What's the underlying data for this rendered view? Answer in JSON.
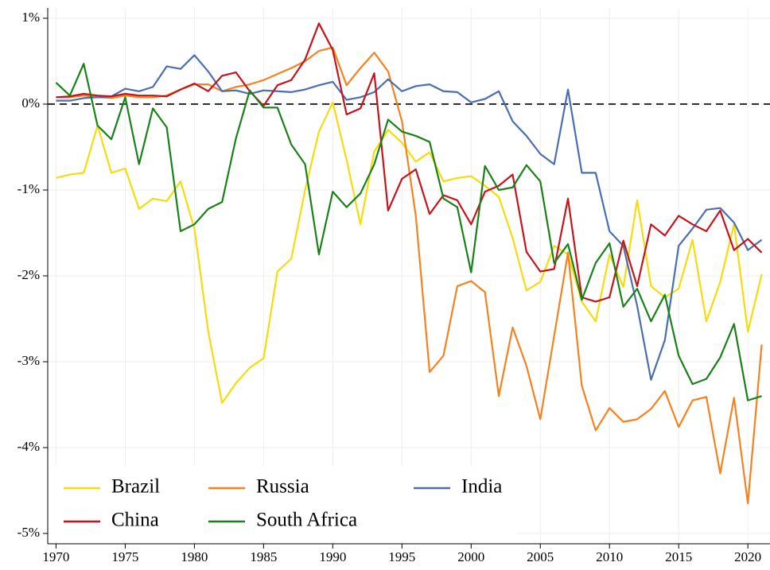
{
  "chart_data": {
    "type": "line",
    "x": [
      1970,
      1971,
      1972,
      1973,
      1974,
      1975,
      1976,
      1977,
      1978,
      1979,
      1980,
      1981,
      1982,
      1983,
      1984,
      1985,
      1986,
      1987,
      1988,
      1989,
      1990,
      1991,
      1992,
      1993,
      1994,
      1995,
      1996,
      1997,
      1998,
      1999,
      2000,
      2001,
      2002,
      2003,
      2004,
      2005,
      2006,
      2007,
      2008,
      2009,
      2010,
      2011,
      2012,
      2013,
      2014,
      2015,
      2016,
      2017,
      2018,
      2019,
      2020,
      2021
    ],
    "series": [
      {
        "name": "Brazil",
        "color": "#f5dc0c",
        "values": [
          -0.86,
          -0.82,
          -0.8,
          -0.25,
          -0.8,
          -0.75,
          -1.22,
          -1.1,
          -1.13,
          -0.9,
          -1.45,
          -2.65,
          -3.48,
          -3.25,
          -3.07,
          -2.96,
          -1.95,
          -1.8,
          -1.0,
          -0.32,
          0.02,
          -0.65,
          -1.4,
          -0.55,
          -0.3,
          -0.45,
          -0.67,
          -0.56,
          -0.9,
          -0.86,
          -0.84,
          -0.95,
          -1.08,
          -1.56,
          -2.17,
          -2.07,
          -1.65,
          -1.75,
          -2.3,
          -2.53,
          -1.75,
          -2.13,
          -1.12,
          -2.12,
          -2.25,
          -2.15,
          -1.58,
          -2.53,
          -2.07,
          -1.4,
          -2.65,
          -1.98
        ]
      },
      {
        "name": "Russia",
        "color": "#f5821f",
        "values": [
          0.08,
          0.08,
          0.1,
          0.08,
          0.07,
          0.1,
          0.08,
          0.08,
          0.1,
          0.17,
          0.23,
          0.23,
          0.15,
          0.2,
          0.23,
          0.28,
          0.35,
          0.42,
          0.5,
          0.62,
          0.66,
          0.22,
          0.42,
          0.6,
          0.38,
          -0.2,
          -1.3,
          -3.12,
          -2.93,
          -2.12,
          -2.06,
          -2.19,
          -3.4,
          -2.6,
          -3.05,
          -3.67,
          -2.7,
          -1.73,
          -3.28,
          -3.8,
          -3.54,
          -3.7,
          -3.67,
          -3.55,
          -3.34,
          -3.76,
          -3.45,
          -3.41,
          -4.3,
          -3.42,
          -4.65,
          -2.8
        ]
      },
      {
        "name": "India",
        "color": "#4a6eb0",
        "values": [
          0.04,
          0.04,
          0.07,
          0.08,
          0.09,
          0.18,
          0.15,
          0.2,
          0.44,
          0.41,
          0.57,
          0.38,
          0.15,
          0.16,
          0.12,
          0.16,
          0.15,
          0.14,
          0.17,
          0.22,
          0.26,
          0.05,
          0.08,
          0.14,
          0.29,
          0.15,
          0.21,
          0.23,
          0.15,
          0.14,
          0.02,
          0.06,
          0.15,
          -0.2,
          -0.37,
          -0.58,
          -0.7,
          0.17,
          -0.8,
          -0.8,
          -1.48,
          -1.65,
          -2.35,
          -3.21,
          -2.75,
          -1.65,
          -1.45,
          -1.23,
          -1.21,
          -1.38,
          -1.7,
          -1.58
        ]
      },
      {
        "name": "China",
        "color": "#c4141c",
        "values": [
          0.08,
          0.09,
          0.12,
          0.1,
          0.09,
          0.12,
          0.1,
          0.1,
          0.09,
          0.17,
          0.24,
          0.15,
          0.33,
          0.37,
          0.15,
          -0.02,
          0.22,
          0.28,
          0.52,
          0.94,
          0.63,
          -0.12,
          -0.05,
          0.36,
          -1.24,
          -0.87,
          -0.76,
          -1.28,
          -1.06,
          -1.12,
          -1.4,
          -1.02,
          -0.95,
          -0.82,
          -1.72,
          -1.95,
          -1.92,
          -1.1,
          -2.25,
          -2.3,
          -2.25,
          -1.59,
          -2.12,
          -1.4,
          -1.53,
          -1.3,
          -1.4,
          -1.48,
          -1.24,
          -1.7,
          -1.57,
          -1.73
        ]
      },
      {
        "name": "South Africa",
        "color": "#1a801a",
        "values": [
          0.25,
          0.1,
          0.47,
          -0.25,
          -0.41,
          0.08,
          -0.7,
          -0.05,
          -0.27,
          -1.48,
          -1.4,
          -1.22,
          -1.14,
          -0.4,
          0.16,
          -0.04,
          -0.04,
          -0.47,
          -0.7,
          -1.75,
          -1.02,
          -1.2,
          -1.04,
          -0.7,
          -0.18,
          -0.32,
          -0.37,
          -0.44,
          -1.1,
          -1.2,
          -1.96,
          -0.72,
          -1.0,
          -0.97,
          -0.71,
          -0.9,
          -1.85,
          -1.63,
          -2.28,
          -1.85,
          -1.62,
          -2.36,
          -2.15,
          -2.53,
          -2.22,
          -2.93,
          -3.26,
          -3.2,
          -2.95,
          -2.56,
          -3.45,
          -3.4
        ]
      }
    ],
    "xlim": [
      1969.4,
      2021.6
    ],
    "xticks": [
      1970,
      1975,
      1980,
      1985,
      1990,
      1995,
      2000,
      2005,
      2010,
      2015,
      2020
    ],
    "ylim": [
      -5.12,
      1.12
    ],
    "yticks": [
      {
        "value": 1,
        "label": "1%"
      },
      {
        "value": 0,
        "label": "0%"
      },
      {
        "value": -1,
        "label": "-1%"
      },
      {
        "value": -2,
        "label": "-2%"
      },
      {
        "value": -3,
        "label": "-3%"
      },
      {
        "value": -4,
        "label": "-4%"
      },
      {
        "value": -5,
        "label": "-5%"
      }
    ],
    "grid": true,
    "legend": "lower left"
  }
}
